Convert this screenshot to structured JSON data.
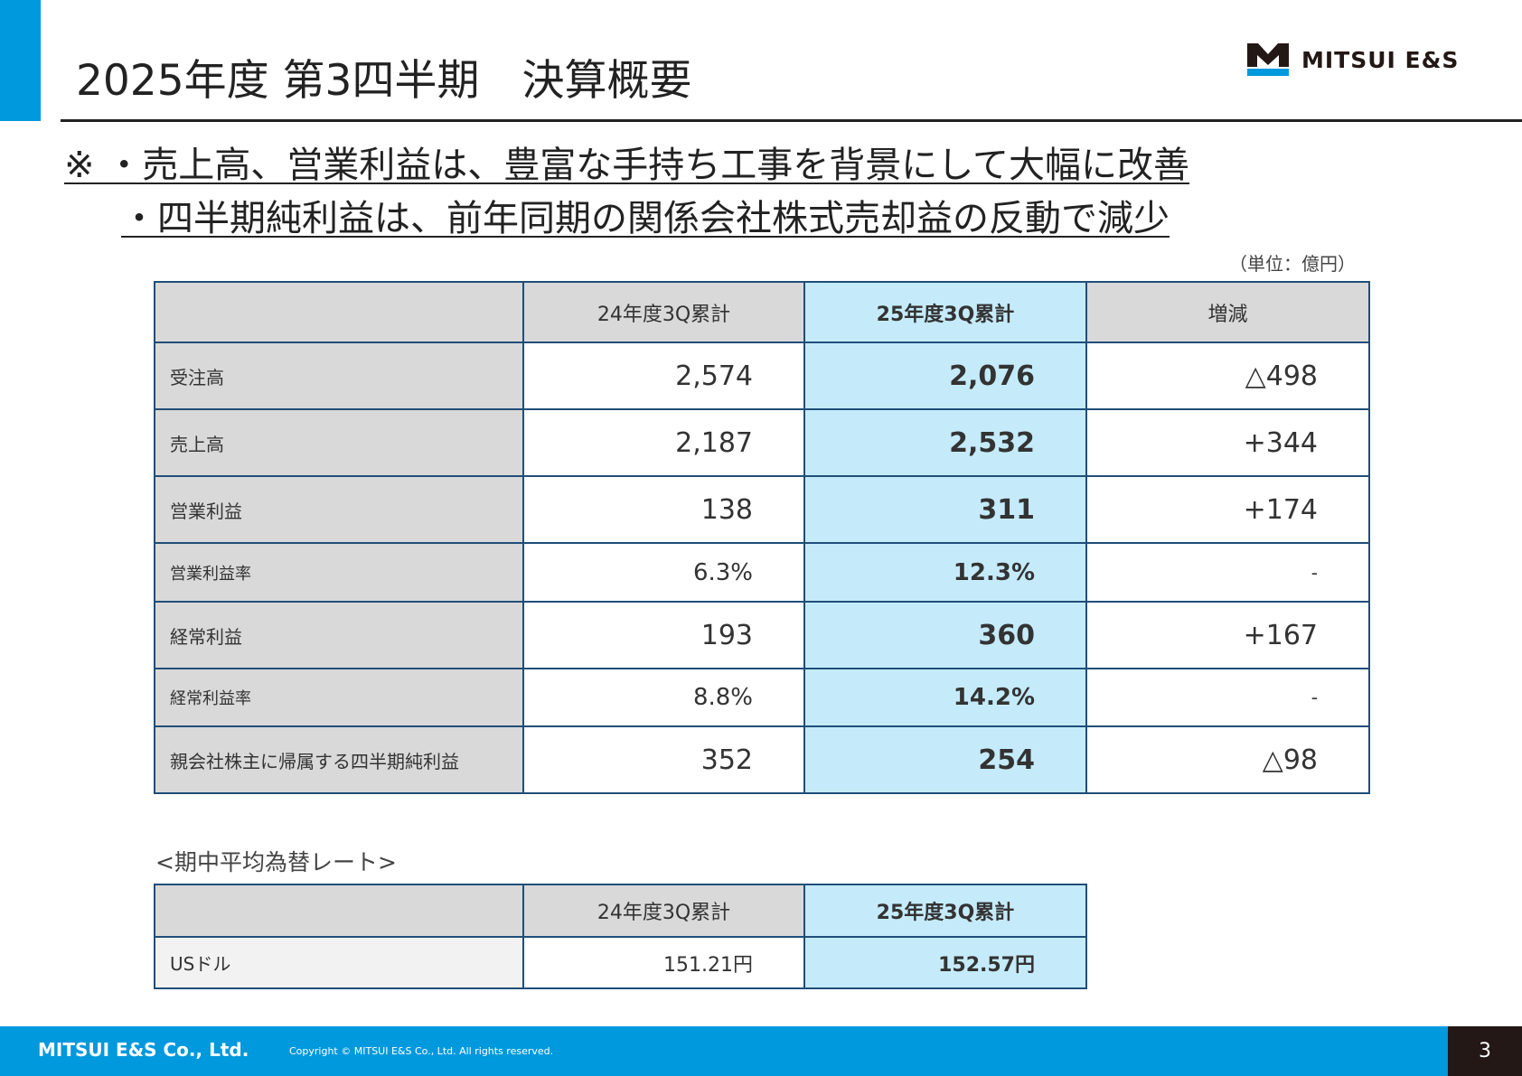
{
  "header": {
    "title": "2025年度 第3四半期　決算概要",
    "logo_text": "MITSUI E&S"
  },
  "summary": {
    "line1": "※ ・売上高、営業利益は、豊富な手持ち工事を背景にして大幅に改善",
    "line2": "・四半期純利益は、前年同期の関係会社株式売却益の反動で減少"
  },
  "unit": "（単位：億円）",
  "results_table": {
    "headers": [
      "",
      "24年度3Q累計",
      "25年度3Q累計",
      "増減"
    ],
    "rows": [
      {
        "label": "受注高",
        "prev": "2,574",
        "curr": "2,076",
        "diff": "△498"
      },
      {
        "label": "売上高",
        "prev": "2,187",
        "curr": "2,532",
        "diff": "+344"
      },
      {
        "label": "営業利益",
        "prev": "138",
        "curr": "311",
        "diff": "+174"
      },
      {
        "label": "営業利益率",
        "prev": "6.3%",
        "curr": "12.3%",
        "diff": "-"
      },
      {
        "label": "経常利益",
        "prev": "193",
        "curr": "360",
        "diff": "+167"
      },
      {
        "label": "経常利益率",
        "prev": "8.8%",
        "curr": "14.2%",
        "diff": "-"
      },
      {
        "label": "親会社株主に帰属する四半期純利益",
        "prev": "352",
        "curr": "254",
        "diff": "△98"
      }
    ]
  },
  "fx": {
    "label": "<期中平均為替レート>",
    "headers": [
      "",
      "24年度3Q累計",
      "25年度3Q累計"
    ],
    "rows": [
      {
        "label": "USドル",
        "prev": "151.21円",
        "curr": "152.57円"
      }
    ]
  },
  "footer": {
    "company": "MITSUI E&S Co., Ltd.",
    "copyright": "Copyright © MITSUI E&S Co., Ltd. All rights reserved.",
    "page": "3"
  },
  "colors": {
    "brand_blue": "#0099dd",
    "highlight": "#c5ebfb",
    "border": "#1f4e79"
  }
}
